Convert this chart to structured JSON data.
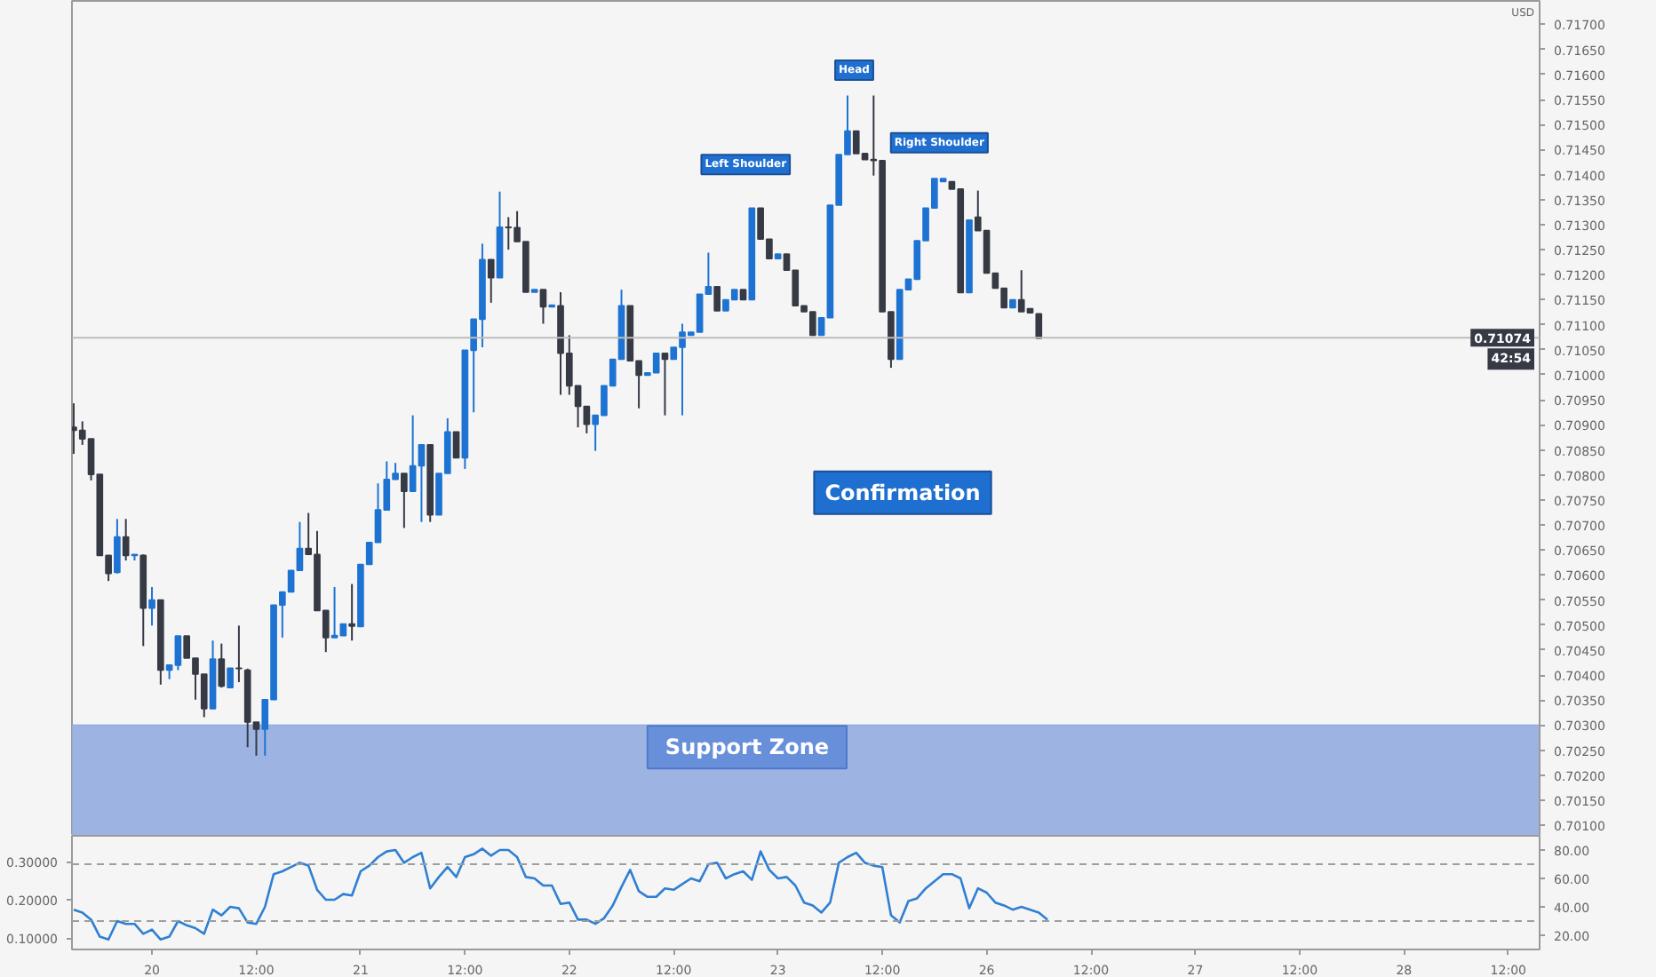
{
  "chart_data": [
    {
      "type": "candlestick",
      "ylabel": "USD",
      "ohlc": [
        [
          0.70895,
          0.70943,
          0.70842,
          0.70889
        ],
        [
          0.70889,
          0.70907,
          0.7086,
          0.70872
        ],
        [
          0.70872,
          0.70872,
          0.70789,
          0.70801
        ],
        [
          0.70801,
          0.70801,
          0.70639,
          0.70639
        ],
        [
          0.70639,
          0.70639,
          0.70588,
          0.70603
        ],
        [
          0.70605,
          0.70712,
          0.70603,
          0.70676
        ],
        [
          0.70676,
          0.70712,
          0.70629,
          0.70639
        ],
        [
          0.70639,
          0.70641,
          0.70629,
          0.70641
        ],
        [
          0.70639,
          0.70641,
          0.70458,
          0.70534
        ],
        [
          0.70534,
          0.70576,
          0.70499,
          0.7055
        ],
        [
          0.7055,
          0.7055,
          0.70381,
          0.7041
        ],
        [
          0.7041,
          0.7042,
          0.70392,
          0.7042
        ],
        [
          0.7042,
          0.70478,
          0.7041,
          0.70478
        ],
        [
          0.70478,
          0.70478,
          0.70434,
          0.70434
        ],
        [
          0.70434,
          0.70434,
          0.70351,
          0.70402
        ],
        [
          0.70402,
          0.70402,
          0.70316,
          0.70333
        ],
        [
          0.70333,
          0.70469,
          0.70333,
          0.70432
        ],
        [
          0.70432,
          0.70463,
          0.70375,
          0.70378
        ],
        [
          0.70375,
          0.70414,
          0.70375,
          0.70414
        ],
        [
          0.70414,
          0.70499,
          0.70386,
          0.70413
        ],
        [
          0.7041,
          0.70413,
          0.70256,
          0.70306
        ],
        [
          0.70306,
          0.70306,
          0.70239,
          0.70292
        ],
        [
          0.70292,
          0.70351,
          0.70239,
          0.70351
        ],
        [
          0.70351,
          0.7054,
          0.70351,
          0.7054
        ],
        [
          0.7054,
          0.70566,
          0.70475,
          0.70566
        ],
        [
          0.70566,
          0.70609,
          0.70566,
          0.70609
        ],
        [
          0.70609,
          0.70706,
          0.70609,
          0.70653
        ],
        [
          0.70653,
          0.70724,
          0.70641,
          0.70641
        ],
        [
          0.70641,
          0.70688,
          0.70529,
          0.70529
        ],
        [
          0.70529,
          0.70529,
          0.70446,
          0.70475
        ],
        [
          0.70475,
          0.70576,
          0.70475,
          0.70479
        ],
        [
          0.70479,
          0.70502,
          0.70479,
          0.70502
        ],
        [
          0.70502,
          0.70582,
          0.70469,
          0.70498
        ],
        [
          0.70497,
          0.70621,
          0.70497,
          0.70621
        ],
        [
          0.70621,
          0.70665,
          0.70621,
          0.70665
        ],
        [
          0.70665,
          0.70783,
          0.70665,
          0.7073
        ],
        [
          0.7073,
          0.70827,
          0.7073,
          0.70791
        ],
        [
          0.70791,
          0.70824,
          0.70791,
          0.70803
        ],
        [
          0.70803,
          0.70803,
          0.70694,
          0.70767
        ],
        [
          0.70767,
          0.70919,
          0.70767,
          0.70818
        ],
        [
          0.70818,
          0.7086,
          0.70706,
          0.7086
        ],
        [
          0.7086,
          0.7086,
          0.70706,
          0.7072
        ],
        [
          0.7072,
          0.70803,
          0.7072,
          0.70803
        ],
        [
          0.70803,
          0.70913,
          0.70803,
          0.70886
        ],
        [
          0.70886,
          0.70886,
          0.70834,
          0.70834
        ],
        [
          0.70834,
          0.71049,
          0.70812,
          0.71049
        ],
        [
          0.71049,
          0.71111,
          0.70925,
          0.71111
        ],
        [
          0.71111,
          0.71262,
          0.71055,
          0.7123
        ],
        [
          0.7123,
          0.7123,
          0.71144,
          0.71194
        ],
        [
          0.71194,
          0.71366,
          0.71194,
          0.71295
        ],
        [
          0.71295,
          0.71315,
          0.7125,
          0.71294
        ],
        [
          0.71294,
          0.71327,
          0.71266,
          0.71266
        ],
        [
          0.71266,
          0.71266,
          0.71165,
          0.71165
        ],
        [
          0.71165,
          0.7117,
          0.71165,
          0.7117
        ],
        [
          0.7117,
          0.7117,
          0.71102,
          0.71136
        ],
        [
          0.71136,
          0.71139,
          0.71136,
          0.71139
        ],
        [
          0.71138,
          0.71165,
          0.7096,
          0.71043
        ],
        [
          0.71043,
          0.71079,
          0.7096,
          0.70978
        ],
        [
          0.70978,
          0.70978,
          0.70895,
          0.70937
        ],
        [
          0.70937,
          0.70937,
          0.70883,
          0.70901
        ],
        [
          0.70901,
          0.70919,
          0.70848,
          0.70919
        ],
        [
          0.70919,
          0.70978,
          0.70919,
          0.70978
        ],
        [
          0.70978,
          0.71031,
          0.70978,
          0.71031
        ],
        [
          0.71031,
          0.7117,
          0.71031,
          0.71138
        ],
        [
          0.71138,
          0.71138,
          0.71028,
          0.71028
        ],
        [
          0.71028,
          0.71028,
          0.70933,
          0.70999
        ],
        [
          0.70999,
          0.71004,
          0.70999,
          0.71004
        ],
        [
          0.71004,
          0.71043,
          0.71004,
          0.71043
        ],
        [
          0.71043,
          0.71043,
          0.70919,
          0.71031
        ],
        [
          0.71031,
          0.71055,
          0.71031,
          0.71055
        ],
        [
          0.71055,
          0.71102,
          0.70919,
          0.71085
        ],
        [
          0.71079,
          0.71085,
          0.71079,
          0.71085
        ],
        [
          0.71085,
          0.71161,
          0.71085,
          0.71161
        ],
        [
          0.71161,
          0.71244,
          0.71161,
          0.71176
        ],
        [
          0.71176,
          0.71176,
          0.71128,
          0.71128
        ],
        [
          0.71128,
          0.7115,
          0.71128,
          0.7115
        ],
        [
          0.7115,
          0.7117,
          0.7115,
          0.7117
        ],
        [
          0.7117,
          0.7117,
          0.7115,
          0.7115
        ],
        [
          0.7115,
          0.71333,
          0.7115,
          0.71333
        ],
        [
          0.71333,
          0.71333,
          0.71271,
          0.71271
        ],
        [
          0.71271,
          0.71271,
          0.71232,
          0.71232
        ],
        [
          0.71232,
          0.71241,
          0.71232,
          0.71241
        ],
        [
          0.71241,
          0.71241,
          0.71209,
          0.71209
        ],
        [
          0.71209,
          0.71209,
          0.71138,
          0.71138
        ],
        [
          0.71138,
          0.71138,
          0.71126,
          0.71126
        ],
        [
          0.71126,
          0.71126,
          0.71079,
          0.71079
        ],
        [
          0.71079,
          0.71114,
          0.71079,
          0.71114
        ],
        [
          0.71114,
          0.71339,
          0.71114,
          0.71339
        ],
        [
          0.71339,
          0.7144,
          0.71339,
          0.7144
        ],
        [
          0.7144,
          0.71558,
          0.7144,
          0.71487
        ],
        [
          0.71487,
          0.71487,
          0.71442,
          0.71442
        ],
        [
          0.71442,
          0.71442,
          0.7143,
          0.7143
        ],
        [
          0.7143,
          0.71558,
          0.71398,
          0.71428
        ],
        [
          0.71428,
          0.71428,
          0.71126,
          0.71126
        ],
        [
          0.71126,
          0.71126,
          0.71014,
          0.71031
        ],
        [
          0.71031,
          0.7117,
          0.71031,
          0.7117
        ],
        [
          0.7117,
          0.71191,
          0.7117,
          0.71191
        ],
        [
          0.71191,
          0.71268,
          0.71191,
          0.71268
        ],
        [
          0.71268,
          0.71333,
          0.71268,
          0.71333
        ],
        [
          0.71333,
          0.71392,
          0.71333,
          0.71392
        ],
        [
          0.71386,
          0.71392,
          0.71386,
          0.71392
        ],
        [
          0.71386,
          0.71386,
          0.71371,
          0.71371
        ],
        [
          0.71371,
          0.71371,
          0.71164,
          0.71164
        ],
        [
          0.71164,
          0.71309,
          0.71164,
          0.71309
        ],
        [
          0.71315,
          0.71368,
          0.71288,
          0.71288
        ],
        [
          0.71288,
          0.71288,
          0.71203,
          0.71203
        ],
        [
          0.71203,
          0.71203,
          0.71173,
          0.71173
        ],
        [
          0.71173,
          0.71173,
          0.71134,
          0.71134
        ],
        [
          0.71134,
          0.7115,
          0.71134,
          0.7115
        ],
        [
          0.7115,
          0.71209,
          0.71126,
          0.71126
        ],
        [
          0.71132,
          0.71132,
          0.71124,
          0.71124
        ],
        [
          0.71122,
          0.71122,
          0.71073,
          0.71073
        ],
        null,
        null,
        null,
        null,
        null,
        null,
        null,
        null,
        null,
        null,
        null,
        null,
        null,
        null,
        null,
        null,
        null,
        null,
        null,
        null,
        null,
        null,
        null,
        null,
        null,
        null,
        null,
        null,
        null,
        null,
        null,
        null,
        null,
        null,
        null,
        null,
        null,
        null,
        null,
        null,
        null,
        null,
        null,
        null,
        null,
        null,
        null,
        null,
        null,
        null,
        null,
        null,
        null,
        null,
        null,
        null,
        null
      ],
      "colors": [
        "#363a45",
        "#363a45",
        "#363a45",
        "#363a45",
        "#363a45",
        "#1e73d2",
        "#363a45",
        "#1e73d2",
        "#363a45",
        "#1e73d2",
        "#363a45",
        "#1e73d2",
        "#1e73d2",
        "#363a45",
        "#363a45",
        "#363a45",
        "#1e73d2",
        "#363a45",
        "#1e73d2",
        "#363a45",
        "#363a45",
        "#363a45",
        "#1e73d2",
        "#1e73d2",
        "#1e73d2",
        "#1e73d2",
        "#1e73d2",
        "#363a45",
        "#363a45",
        "#363a45",
        "#1e73d2",
        "#1e73d2",
        "#363a45",
        "#1e73d2",
        "#1e73d2",
        "#1e73d2",
        "#1e73d2",
        "#1e73d2",
        "#363a45",
        "#1e73d2",
        "#1e73d2",
        "#363a45",
        "#1e73d2",
        "#1e73d2",
        "#363a45",
        "#1e73d2",
        "#1e73d2",
        "#1e73d2",
        "#363a45",
        "#1e73d2",
        "#363a45",
        "#363a45",
        "#363a45",
        "#1e73d2",
        "#363a45",
        "#1e73d2",
        "#363a45",
        "#363a45",
        "#363a45",
        "#363a45",
        "#1e73d2",
        "#1e73d2",
        "#1e73d2",
        "#1e73d2",
        "#363a45",
        "#363a45",
        "#1e73d2",
        "#1e73d2",
        "#363a45",
        "#1e73d2",
        "#1e73d2",
        "#1e73d2",
        "#1e73d2",
        "#1e73d2",
        "#363a45",
        "#1e73d2",
        "#1e73d2",
        "#363a45",
        "#1e73d2",
        "#363a45",
        "#363a45",
        "#1e73d2",
        "#363a45",
        "#363a45",
        "#363a45",
        "#363a45",
        "#1e73d2",
        "#1e73d2",
        "#1e73d2",
        "#1e73d2",
        "#363a45",
        "#363a45",
        "#363a45",
        "#363a45",
        "#363a45",
        "#1e73d2",
        "#1e73d2",
        "#1e73d2",
        "#1e73d2",
        "#1e73d2",
        "#1e73d2",
        "#363a45",
        "#363a45",
        "#1e73d2",
        "#363a45",
        "#363a45",
        "#363a45",
        "#363a45",
        "#1e73d2",
        "#363a45",
        "#363a45",
        "#363a45",
        null,
        null,
        null,
        null,
        null,
        null,
        null,
        null,
        null,
        null,
        null,
        null,
        null,
        null,
        null,
        null,
        null,
        null,
        null,
        null,
        null,
        null,
        null,
        null,
        null,
        null,
        null,
        null,
        null,
        null,
        null,
        null,
        null,
        null,
        null,
        null,
        null,
        null,
        null,
        null,
        null,
        null,
        null,
        null,
        null,
        null,
        null,
        null,
        null,
        null,
        null,
        null,
        null,
        null,
        null,
        null,
        null
      ],
      "ylim": [
        0.70079,
        0.71747
      ],
      "yticks": [
        {
          "value": 0.701,
          "label": "0.70100"
        },
        {
          "value": 0.7015,
          "label": "0.70150"
        },
        {
          "value": 0.702,
          "label": "0.70200"
        },
        {
          "value": 0.7025,
          "label": "0.70250"
        },
        {
          "value": 0.703,
          "label": "0.70300"
        },
        {
          "value": 0.7035,
          "label": "0.70350"
        },
        {
          "value": 0.704,
          "label": "0.70400"
        },
        {
          "value": 0.7045,
          "label": "0.70450"
        },
        {
          "value": 0.705,
          "label": "0.70500"
        },
        {
          "value": 0.7055,
          "label": "0.70550"
        },
        {
          "value": 0.706,
          "label": "0.70600"
        },
        {
          "value": 0.7065,
          "label": "0.70650"
        },
        {
          "value": 0.707,
          "label": "0.70700"
        },
        {
          "value": 0.7075,
          "label": "0.70750"
        },
        {
          "value": 0.708,
          "label": "0.70800"
        },
        {
          "value": 0.7085,
          "label": "0.70850"
        },
        {
          "value": 0.709,
          "label": "0.70900"
        },
        {
          "value": 0.7095,
          "label": "0.70950"
        },
        {
          "value": 0.71,
          "label": "0.71000"
        },
        {
          "value": 0.7105,
          "label": "0.71050"
        },
        {
          "value": 0.711,
          "label": "0.71100"
        },
        {
          "value": 0.7115,
          "label": "0.71150"
        },
        {
          "value": 0.712,
          "label": "0.71200"
        },
        {
          "value": 0.7125,
          "label": "0.71250"
        },
        {
          "value": 0.713,
          "label": "0.71300"
        },
        {
          "value": 0.7135,
          "label": "0.71350"
        },
        {
          "value": 0.714,
          "label": "0.71400"
        },
        {
          "value": 0.7145,
          "label": "0.71450"
        },
        {
          "value": 0.715,
          "label": "0.71500"
        },
        {
          "value": 0.7155,
          "label": "0.71550"
        },
        {
          "value": 0.716,
          "label": "0.71600"
        },
        {
          "value": 0.7165,
          "label": "0.71650"
        },
        {
          "value": 0.717,
          "label": "0.71700"
        }
      ],
      "tick_labels": "y",
      "grid": false,
      "ref_lines": [
        {
          "axis": "y",
          "value": 0.71074,
          "label": "0.71074",
          "color": "#bdbdbd"
        }
      ],
      "bands": [
        {
          "axis": "y",
          "from": 0.70079,
          "to": 0.70301,
          "label": "Support Zone",
          "color": "#9db4e3"
        }
      ],
      "annotations": [
        "Left Shoulder",
        "Head",
        "Right Shoulder",
        "Confirmation",
        "42:54"
      ]
    },
    {
      "type": "line",
      "categories": [
        null,
        null,
        null,
        null,
        null,
        null,
        null,
        null,
        null,
        "20",
        null,
        null,
        null,
        null,
        null,
        null,
        null,
        null,
        null,
        null,
        null,
        "12:00",
        null,
        null,
        null,
        null,
        null,
        null,
        null,
        null,
        null,
        null,
        null,
        "21",
        null,
        null,
        null,
        null,
        null,
        null,
        null,
        null,
        null,
        null,
        null,
        "12:00",
        null,
        null,
        null,
        null,
        null,
        null,
        null,
        null,
        null,
        null,
        null,
        "22",
        null,
        null,
        null,
        null,
        null,
        null,
        null,
        null,
        null,
        null,
        null,
        "12:00",
        null,
        null,
        null,
        null,
        null,
        null,
        null,
        null,
        null,
        null,
        null,
        "23",
        null,
        null,
        null,
        null,
        null,
        null,
        null,
        null,
        null,
        null,
        null,
        "12:00",
        null,
        null,
        null,
        null,
        null,
        null,
        null,
        null,
        null,
        null,
        null,
        "26",
        null,
        null,
        null,
        null,
        null,
        null,
        null,
        null,
        null,
        null,
        null,
        "12:00",
        null,
        null,
        null,
        null,
        null,
        null,
        null,
        null,
        null,
        null,
        null,
        "27",
        null,
        null,
        null,
        null,
        null,
        null,
        null,
        null,
        null,
        null,
        null,
        "12:00",
        null,
        null,
        null,
        null,
        null,
        null,
        null,
        null,
        null,
        null,
        null,
        "28",
        null,
        null,
        null,
        null,
        null,
        null,
        null,
        null,
        null,
        null,
        null,
        "12:00",
        null,
        null,
        null
      ],
      "series": [
        {
          "color": "#2f7fd3",
          "axis": "y2",
          "values": [
            38,
            36,
            31,
            19,
            17,
            30,
            28,
            28,
            21,
            24,
            17,
            19,
            30,
            27,
            25,
            21,
            38,
            34,
            40,
            39,
            29,
            28,
            40,
            63,
            65,
            68,
            71,
            69,
            52,
            45,
            45,
            49,
            48,
            65,
            69,
            75,
            79,
            80,
            71,
            75,
            78,
            53,
            61,
            68,
            61,
            75,
            77,
            81,
            76,
            80,
            80,
            75,
            61,
            60,
            55,
            55,
            42,
            43,
            31,
            31,
            28,
            32,
            41,
            54,
            66,
            51,
            47,
            47,
            53,
            52,
            56,
            60,
            58,
            70,
            71,
            60,
            63,
            65,
            59,
            79,
            66,
            60,
            61,
            55,
            43,
            41,
            36,
            43,
            71,
            75,
            78,
            71,
            69,
            68,
            34,
            29,
            44,
            46,
            53,
            58,
            63,
            63,
            60,
            39,
            53,
            50,
            43,
            41,
            38,
            40,
            38,
            36,
            31,
            null,
            null,
            null,
            null,
            null,
            null,
            null,
            null,
            null,
            null,
            null,
            null,
            null,
            null,
            null,
            null,
            null,
            null,
            null,
            null,
            null,
            null,
            null,
            null,
            null,
            null,
            null,
            null,
            null,
            null,
            null,
            null,
            null,
            null,
            null,
            null,
            null,
            null,
            null,
            null,
            null,
            null,
            null,
            null,
            null,
            null,
            null,
            null,
            null,
            null,
            null,
            null,
            null,
            null,
            null,
            null
          ]
        }
      ],
      "ylim": [
        0.07,
        0.368
      ],
      "yticks": [
        {
          "value": 0.1,
          "label": "0.10000"
        },
        {
          "value": 0.2,
          "label": "0.20000"
        },
        {
          "value": 0.3,
          "label": "0.30000"
        }
      ],
      "y2lim": [
        10,
        90
      ],
      "y2ticks": [
        {
          "value": 20,
          "label": "20.00"
        },
        {
          "value": 40,
          "label": "40.00"
        },
        {
          "value": 60,
          "label": "60.00"
        },
        {
          "value": 80,
          "label": "80.00"
        }
      ],
      "grid": false,
      "ref_lines": [
        {
          "axis": "y2",
          "value": 70,
          "line_style": "dashed",
          "color": "#9e9e9e"
        },
        {
          "axis": "y2",
          "value": 30,
          "line_style": "dashed",
          "color": "#9e9e9e"
        }
      ]
    }
  ]
}
